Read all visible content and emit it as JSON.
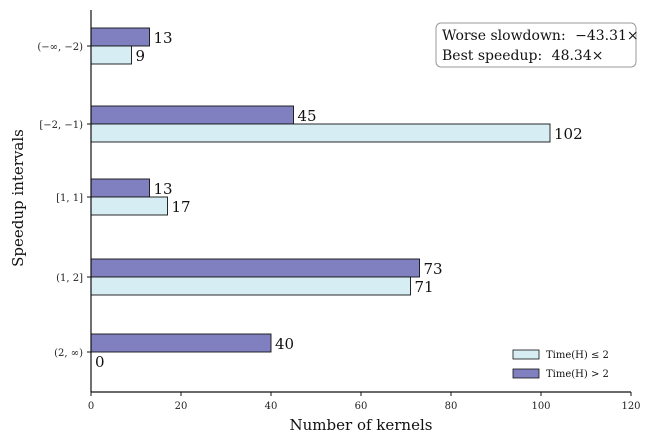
{
  "chart_data": {
    "type": "bar",
    "orientation": "horizontal",
    "categories": [
      "(−∞, −2)",
      "[−2, −1)",
      "[1, 1]",
      "(1, 2]",
      "(2, ∞)"
    ],
    "series": [
      {
        "name": "Time(H) > 2",
        "values": [
          13,
          45,
          13,
          73,
          40
        ],
        "color": "#8080c0"
      },
      {
        "name": "Time(H) ≤ 2",
        "values": [
          9,
          102,
          17,
          71,
          0
        ],
        "color": "#d6edf4"
      }
    ],
    "xlabel": "Number of kernels",
    "ylabel": "Speedup intervals",
    "xlim": [
      0,
      120
    ],
    "xticks": [
      0,
      20,
      40,
      60,
      80,
      100,
      120
    ],
    "grid": false,
    "legend_placement": "bottom-right",
    "annotation": {
      "line1_label": "Worse slowdown:",
      "line1_value": "−43.31×",
      "line2_label": "Best speedup:",
      "line2_value": "48.34×"
    }
  }
}
